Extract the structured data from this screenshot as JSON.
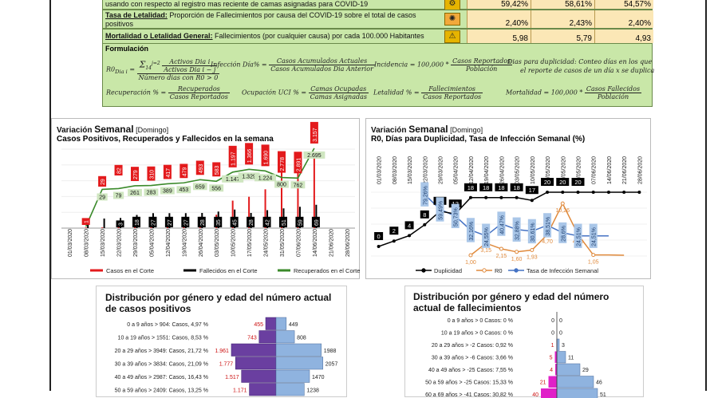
{
  "indicators": [
    {
      "text": "usando con respecto al registro mas reciente de camas asignadas para COVID-19",
      "label": "",
      "values": [
        "59,42%",
        "58,61%",
        "54,57%"
      ]
    },
    {
      "label": "Tasa de Letalidad:",
      "text": " Proporción de Fallecimientos por causa del COVID-19 sobre el total de casos positivos",
      "values": [
        "2,40%",
        "2,43%",
        "2,40%"
      ]
    },
    {
      "label": "Mortalidad o Letalidad General:",
      "text": " Fallecimientos (por cualquier causa) por cada 100.000 Habitantes",
      "values": [
        "5,98",
        "5,79",
        "4,93"
      ]
    }
  ],
  "formulas": {
    "title": "Formulación",
    "r0_lhs": "R0",
    "r0_sub": "Dia i",
    "r0_eq": "=",
    "r0_num_sum": "Σ",
    "r0_num_sum_top": "j=2",
    "r0_num_sum_bot": "14",
    "r0_num_a": "Activos Dia i",
    "r0_num_b": "Activos Dia i − j",
    "r0_den": "Número dias con R0 > 0",
    "inf_lhs": "Infección Día% =",
    "inf_num": "Casos Acumulados Actuales",
    "inf_den": "Casos  Acumulados Dia Anterior",
    "inc_lhs": "Incidencia = 100,000 *",
    "inc_num": "Casos Reportados",
    "inc_den": "Población",
    "dup_text1": "Dias para duplicidad: Conteo días en los que",
    "dup_text2": "el reporte de casos de un día x se duplica",
    "rec_lhs": "Recuperación % =",
    "rec_num": "Recuperados",
    "rec_den": "Casos Reportados",
    "uci_lhs": "Ocupación UCI % =",
    "uci_num": "Camas Ocupadas",
    "uci_den": "Camas Asignadas",
    "let_lhs": "Letalidad % =",
    "let_num": "Fallecimientos",
    "let_den": "Casos Reportados",
    "mor_lhs": "Mortalidad = 100,000 *",
    "mor_num": "Casos Fallecidos",
    "mor_den": "Población"
  },
  "chart1": {
    "title_pre": "Variación ",
    "title_big": "Semanal",
    "title_post": " [Domingo]",
    "subtitle": "Casos Positivos, Recuperados y Fallecidos en la semana"
  },
  "chart2": {
    "title_pre": "Variación ",
    "title_big": "Semanal",
    "title_post": " [Domingo]",
    "subtitle": "R0, Días para Duplicidad, Tasa de Infección Semanal (%)"
  },
  "pyr1": {
    "title": "Distribución por género y edad del número actual de casos positivos"
  },
  "pyr2": {
    "title": "Distribución por género y edad del número actual de fallecimientos"
  },
  "chart_data": [
    {
      "type": "bar",
      "dates": [
        "01/03/2020",
        "08/03/2020",
        "15/03/2020",
        "22/03/2020",
        "29/03/2020",
        "05/04/2020",
        "12/04/2020",
        "19/04/2020",
        "26/04/2020",
        "03/05/2020",
        "10/05/2020",
        "17/05/2020",
        "24/05/2020",
        "31/05/2020",
        "07/06/2020",
        "14/06/2020",
        "21/06/2020",
        "28/06/2020"
      ],
      "series": [
        {
          "name": "Casos en el  Corte",
          "values": [
            null,
            1,
            29,
            82,
            279,
            310,
            417,
            479,
            493,
            583,
            1197,
            1366,
            1690,
            2778,
            2891,
            3157,
            null,
            null
          ],
          "labels": [
            "",
            "1",
            "29",
            "82",
            "279",
            "310",
            "417",
            "479",
            "493",
            "583",
            "1.197",
            "1.366",
            "1.690",
            "2.778",
            "2.891",
            "3.157",
            "",
            ""
          ],
          "color": "#e31a1c"
        },
        {
          "name": "Fallecidos en el Corte",
          "values": [
            null,
            0,
            0,
            3,
            18,
            27,
            27,
            27,
            28,
            35,
            45,
            28,
            42,
            51,
            59,
            69,
            null,
            null
          ],
          "labels": [
            "",
            "0",
            "0",
            "3",
            "18",
            "27",
            "27",
            "27",
            "28",
            "35",
            "45",
            "28",
            "42",
            "51",
            "59",
            "69",
            "",
            ""
          ],
          "color": "#000000"
        },
        {
          "name": "Recuperados en el Corte",
          "values": [
            null,
            0,
            29,
            79,
            261,
            283,
            389,
            453,
            659,
            556,
            1147,
            1329,
            1224,
            800,
            762,
            2695,
            null,
            null
          ],
          "labels": [
            "",
            "0",
            "29",
            "79",
            "261",
            "283",
            "389",
            "453",
            "659",
            "556",
            "1.147",
            "1.329",
            "1.224",
            "800",
            "762",
            "2.695",
            "",
            ""
          ],
          "color": "#3a8a2a"
        }
      ]
    },
    {
      "type": "line",
      "dates": [
        "01/03/2020",
        "08/03/2020",
        "15/03/2020",
        "22/03/2020",
        "29/03/2020",
        "05/04/2020",
        "12/04/2020",
        "19/04/2020",
        "26/04/2020",
        "03/05/2020",
        "10/05/2020",
        "17/05/2020",
        "24/05/2020",
        "31/05/2020",
        "07/06/2020",
        "14/06/2020",
        "21/06/2020",
        "28/06/2020"
      ],
      "series": [
        {
          "name": "Duplicidad",
          "values": [
            0,
            2,
            4,
            8,
            13,
            12,
            18,
            18,
            18,
            18,
            17,
            20,
            20,
            20,
            20,
            20,
            20,
            20
          ],
          "labels": [
            "0",
            "2",
            "4",
            "8",
            "13",
            "12",
            "18",
            "18",
            "18",
            "18",
            "17",
            "20",
            "20",
            "20",
            "",
            "",
            "",
            ""
          ],
          "color": "#000000"
        },
        {
          "name": "R0",
          "values": [
            null,
            null,
            null,
            null,
            null,
            null,
            1.0,
            3.15,
            2.15,
            1.6,
            1.93,
            4.7,
            10.26,
            4.7,
            1.05,
            null,
            null,
            null
          ],
          "labels": [
            "",
            "",
            "",
            "",
            "",
            "",
            "1,00",
            "3,15",
            "2,15",
            "1,60",
            "1,93",
            "4,70",
            "10,26",
            "4,70",
            "1,05",
            "",
            "",
            ""
          ],
          "color": "#e08a3c"
        },
        {
          "name": "Tasa de Infección Semanal",
          "values": [
            null,
            null,
            null,
            79.26,
            59.49,
            50.73,
            32.16,
            24.55,
            40.47,
            32.88,
            30.61,
            38.51,
            28.6,
            24.51,
            24.51,
            null,
            null,
            null
          ],
          "labels": [
            "",
            "",
            "",
            "79,26%",
            "59,49%",
            "50,73%",
            "32,16%",
            "24,55%",
            "40,47%",
            "32,88%",
            "30,61%",
            "38,51%",
            "28,6%",
            "24,51%",
            "24,51%",
            "",
            "",
            ""
          ],
          "color": "#4472c4"
        }
      ]
    },
    {
      "type": "bar",
      "categories": [
        "0 a 9 años > 904: Casos, 4,97 %",
        "10 a 19 años > 1551: Casos, 8,53 %",
        "20 a 29 años > 3949: Casos, 21,72 %",
        "30 a 39 años > 3834: Casos, 21,09 %",
        "40 a 49 años > 2987: Casos, 16,43 %",
        "50 a 59 años > 2409: Casos, 13,25 %"
      ],
      "series": [
        {
          "name": "Mujeres",
          "values": [
            455,
            743,
            1961,
            1777,
            1517,
            1171
          ],
          "labels": [
            "455",
            "743",
            "1.961",
            "1.777",
            "1.517",
            "1.171"
          ]
        },
        {
          "name": "Hombres",
          "values": [
            449,
            808,
            1988,
            2057,
            1470,
            1238
          ],
          "labels": [
            "449",
            "808",
            "1988",
            "2057",
            "1470",
            "1238"
          ]
        }
      ]
    },
    {
      "type": "bar",
      "categories": [
        "0 a 9 años > 0 Casos: 0 %",
        "10 a 19 años > 0 Casos: 0 %",
        "20 a 29 años > -2 Casos: 0,92 %",
        "30 a 39 años > -6 Casos: 3,66 %",
        "40 a 49 años > -25 Casos: 7,55 %",
        "50 a 59 años > -25 Casos: 15,33 %",
        "60 a 69 años > -41 Casos: 30,82 %"
      ],
      "series": [
        {
          "name": "Mujeres",
          "values": [
            0,
            0,
            1,
            5,
            4,
            21,
            40
          ],
          "labels": [
            "0",
            "0",
            "1",
            "5",
            "4",
            "21",
            "40"
          ]
        },
        {
          "name": "Hombres",
          "values": [
            0,
            0,
            3,
            11,
            29,
            46,
            51
          ],
          "labels": [
            "0",
            "0",
            "3",
            "11",
            "29",
            "46",
            "51"
          ]
        }
      ]
    }
  ]
}
